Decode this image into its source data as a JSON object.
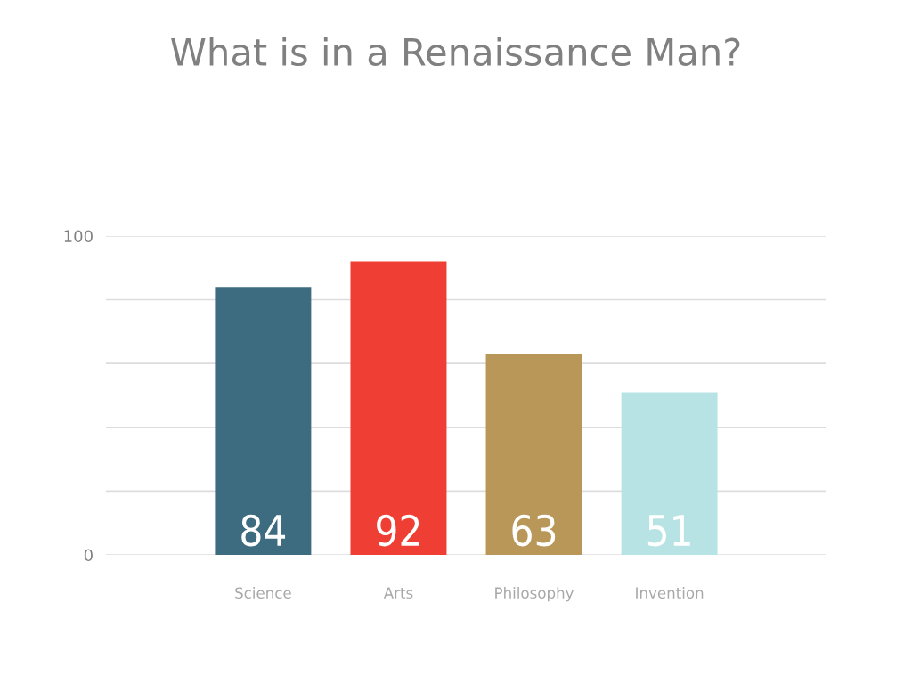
{
  "chart_data": {
    "type": "bar",
    "title": "What is in a Renaissance Man?",
    "categories": [
      "Science",
      "Arts",
      "Philosophy",
      "Invention"
    ],
    "values": [
      84,
      92,
      63,
      51
    ],
    "colors": [
      "#3d6b7f",
      "#ef3f35",
      "#b89758",
      "#b8e3e4"
    ],
    "ylim": [
      0,
      100
    ],
    "yticks": [
      0,
      {
        "value": 20,
        "label": null
      },
      {
        "value": 40,
        "label": null
      },
      {
        "value": 60,
        "label": null
      },
      {
        "value": 80,
        "label": null
      },
      100
    ],
    "grid": "y",
    "data_labels": true
  }
}
